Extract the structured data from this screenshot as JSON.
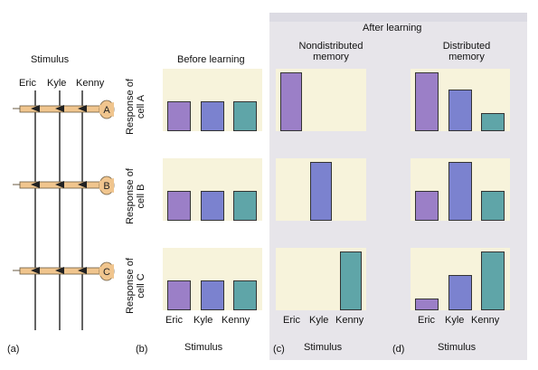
{
  "panel_a": {
    "title": "Stimulus",
    "inputs": [
      "Eric",
      "Kyle",
      "Kenny"
    ],
    "cells": [
      "A",
      "B",
      "C"
    ],
    "tag": "(a)"
  },
  "panel_b": {
    "title": "Before learning",
    "tag": "(b)",
    "xlabel": "Stimulus",
    "row_labels": [
      "Response of cell A",
      "Response of cell B",
      "Response of cell C"
    ]
  },
  "after_learning": {
    "title": "After learning"
  },
  "panel_c": {
    "title": "Nondistributed memory",
    "tag": "(c)",
    "xlabel": "Stimulus"
  },
  "panel_d": {
    "title": "Distributed memory",
    "tag": "(d)",
    "xlabel": "Stimulus"
  },
  "colors": {
    "eric": "#9b7fc7",
    "kyle": "#7b82cf",
    "kenny": "#5fa5a8",
    "plot_bg": "#f7f3db",
    "cell": "#f0c58e"
  },
  "chart_data": [
    {
      "type": "bar",
      "panel": "b",
      "categories": [
        "Eric",
        "Kyle",
        "Kenny"
      ],
      "series": [
        {
          "name": "Response of cell A",
          "values": [
            0.5,
            0.5,
            0.5
          ]
        },
        {
          "name": "Response of cell B",
          "values": [
            0.5,
            0.5,
            0.5
          ]
        },
        {
          "name": "Response of cell C",
          "values": [
            0.5,
            0.5,
            0.5
          ]
        }
      ]
    },
    {
      "type": "bar",
      "panel": "c",
      "categories": [
        "Eric",
        "Kyle",
        "Kenny"
      ],
      "series": [
        {
          "name": "Response of cell A",
          "values": [
            1.0,
            0,
            0
          ]
        },
        {
          "name": "Response of cell B",
          "values": [
            0,
            1.0,
            0
          ]
        },
        {
          "name": "Response of cell C",
          "values": [
            0,
            0,
            1.0
          ]
        }
      ]
    },
    {
      "type": "bar",
      "panel": "d",
      "categories": [
        "Eric",
        "Kyle",
        "Kenny"
      ],
      "series": [
        {
          "name": "Response of cell A",
          "values": [
            1.0,
            0.7,
            0.3
          ]
        },
        {
          "name": "Response of cell B",
          "values": [
            0.5,
            1.0,
            0.5
          ]
        },
        {
          "name": "Response of cell C",
          "values": [
            0.2,
            0.6,
            1.0
          ]
        }
      ]
    }
  ]
}
